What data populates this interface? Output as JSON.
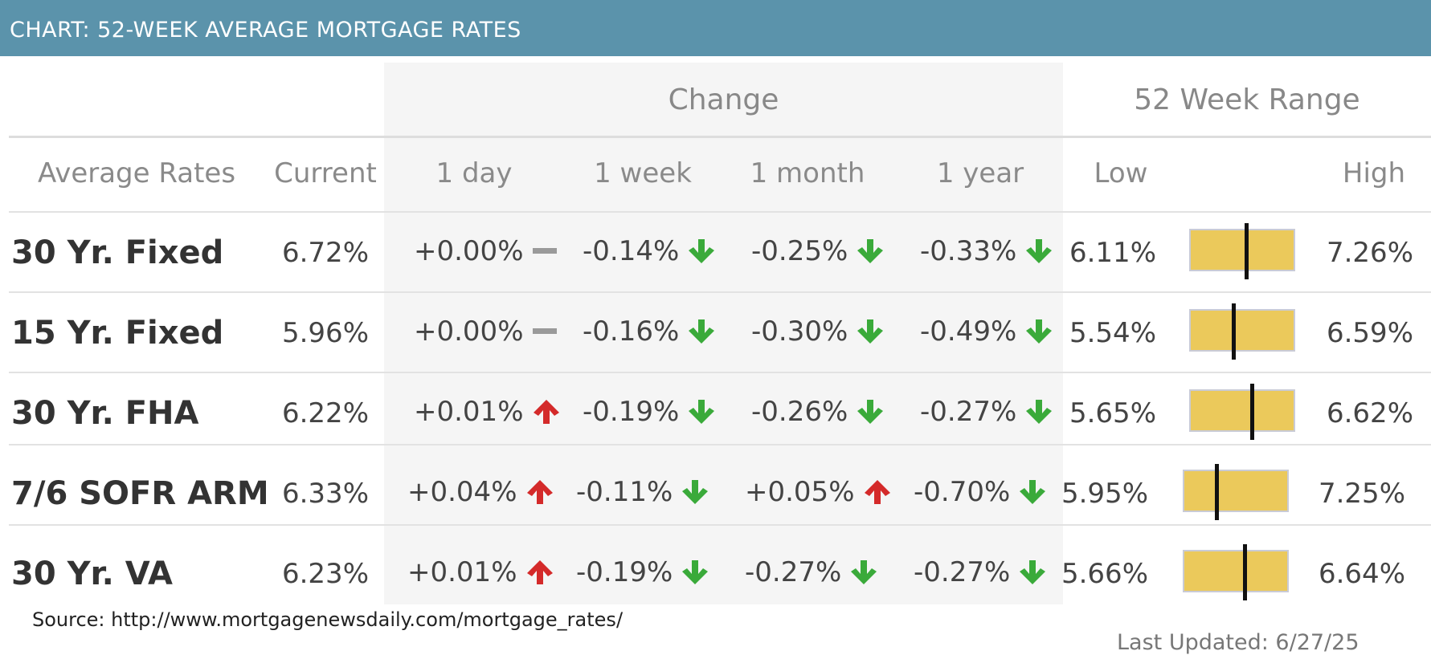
{
  "header": {
    "title": "CHART: 52-WEEK AVERAGE MORTGAGE RATES"
  },
  "colors": {
    "banner": "#5b93ab",
    "up": "#d42a2a",
    "down": "#3aaa3a",
    "flat": "#9a9a9a",
    "range_bar": "#ebc95b"
  },
  "chart_data": {
    "type": "table",
    "title": "CHART: 52-WEEK AVERAGE MORTGAGE RATES",
    "group_headers": {
      "change": "Change",
      "range": "52 Week Range"
    },
    "columns": [
      "Average Rates",
      "Current",
      "1 day",
      "1 week",
      "1 month",
      "1 year",
      "Low",
      "High"
    ],
    "rows": [
      {
        "name": "30 Yr. Fixed",
        "current": "6.72%",
        "changes": [
          {
            "value": "+0.00%",
            "dir": "flat"
          },
          {
            "value": "-0.14%",
            "dir": "down"
          },
          {
            "value": "-0.25%",
            "dir": "down"
          },
          {
            "value": "-0.33%",
            "dir": "down"
          }
        ],
        "low": "6.11%",
        "high": "7.26%",
        "low_num": 6.11,
        "high_num": 7.26,
        "current_num": 6.72
      },
      {
        "name": "15 Yr. Fixed",
        "current": "5.96%",
        "changes": [
          {
            "value": "+0.00%",
            "dir": "flat"
          },
          {
            "value": "-0.16%",
            "dir": "down"
          },
          {
            "value": "-0.30%",
            "dir": "down"
          },
          {
            "value": "-0.49%",
            "dir": "down"
          }
        ],
        "low": "5.54%",
        "high": "6.59%",
        "low_num": 5.54,
        "high_num": 6.59,
        "current_num": 5.96
      },
      {
        "name": "30 Yr. FHA",
        "current": "6.22%",
        "changes": [
          {
            "value": "+0.01%",
            "dir": "up"
          },
          {
            "value": "-0.19%",
            "dir": "down"
          },
          {
            "value": "-0.26%",
            "dir": "down"
          },
          {
            "value": "-0.27%",
            "dir": "down"
          }
        ],
        "low": "5.65%",
        "high": "6.62%",
        "low_num": 5.65,
        "high_num": 6.62,
        "current_num": 6.22
      },
      {
        "name": "7/6 SOFR ARM",
        "current": "6.33%",
        "changes": [
          {
            "value": "+0.04%",
            "dir": "up"
          },
          {
            "value": "-0.11%",
            "dir": "down"
          },
          {
            "value": "+0.05%",
            "dir": "up"
          },
          {
            "value": "-0.70%",
            "dir": "down"
          }
        ],
        "low": "5.95%",
        "high": "7.25%",
        "low_num": 5.95,
        "high_num": 7.25,
        "current_num": 6.33
      },
      {
        "name": "30 Yr. VA",
        "current": "6.23%",
        "changes": [
          {
            "value": "+0.01%",
            "dir": "up"
          },
          {
            "value": "-0.19%",
            "dir": "down"
          },
          {
            "value": "-0.27%",
            "dir": "down"
          },
          {
            "value": "-0.27%",
            "dir": "down"
          }
        ],
        "low": "5.66%",
        "high": "6.64%",
        "low_num": 5.66,
        "high_num": 6.64,
        "current_num": 6.23
      }
    ],
    "source": "Source: http://www.mortgagenewsdaily.com/mortgage_rates/",
    "last_updated": "Last Updated: 6/27/25"
  }
}
